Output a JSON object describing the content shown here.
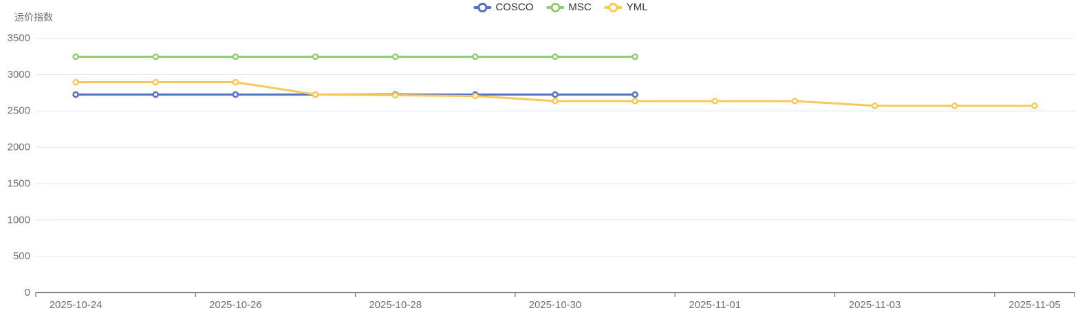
{
  "chart": {
    "y_axis_name": "运价指数",
    "background": "#ffffff",
    "colors": {
      "axis_line": "#6E7079",
      "axis_label": "#6E7079",
      "grid_line": "#E0E6F1",
      "legend_text": "#333333"
    }
  },
  "chart_data": {
    "type": "line",
    "title": "",
    "xlabel": "",
    "ylabel": "运价指数",
    "ylim": [
      0,
      3500
    ],
    "y_ticks": [
      0,
      500,
      1000,
      1500,
      2000,
      2500,
      3000,
      3500
    ],
    "grid": true,
    "legend_position": "top-center",
    "symbol": "hollow-circle",
    "xlabel_interval": 2,
    "categories": [
      "2025-10-24",
      "2025-10-25",
      "2025-10-26",
      "2025-10-27",
      "2025-10-28",
      "2025-10-29",
      "2025-10-30",
      "2025-10-31",
      "2025-11-01",
      "2025-11-02",
      "2025-11-03",
      "2025-11-04",
      "2025-11-05"
    ],
    "x_tick_labels": [
      "2025-10-24",
      "2025-10-26",
      "2025-10-28",
      "2025-10-30",
      "2025-11-01",
      "2025-11-03",
      "2025-11-05"
    ],
    "series": [
      {
        "name": "COSCO",
        "color": "#5470C6",
        "values": [
          2720,
          2720,
          2720,
          2720,
          2720,
          2720,
          2720,
          2720,
          null,
          null,
          null,
          null,
          null
        ]
      },
      {
        "name": "MSC",
        "color": "#91CC75",
        "values": [
          3240,
          3240,
          3240,
          3240,
          3240,
          3240,
          3240,
          3240,
          null,
          null,
          null,
          null,
          null
        ]
      },
      {
        "name": "YML",
        "color": "#FAC858",
        "values": [
          2890,
          2890,
          2890,
          2720,
          2710,
          2700,
          2630,
          2630,
          2630,
          2630,
          2565,
          2565,
          2565
        ]
      }
    ]
  }
}
